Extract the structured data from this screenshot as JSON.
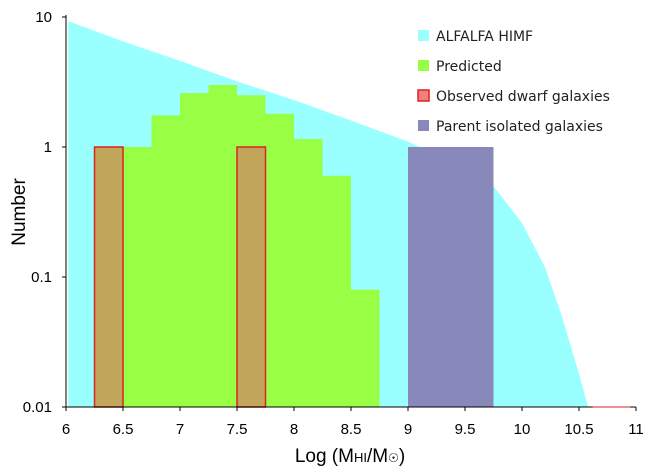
{
  "chart_data": {
    "type": "bar",
    "xlabel": "Log (M",
    "xlabel_sub": "HI",
    "xlabel_mid": "/M",
    "xlabel_sym": "☉",
    "xlabel_end": ")",
    "ylabel": "Number",
    "xlim": [
      6,
      11
    ],
    "ylim": [
      0.01,
      10
    ],
    "yscale": "log",
    "x_ticks": [
      "6",
      "6.5",
      "7",
      "7.5",
      "8",
      "8.5",
      "9",
      "9.5",
      "10",
      "10.5",
      "11"
    ],
    "y_ticks": [
      "10",
      "1",
      "0.1",
      "0.01"
    ],
    "grid": false,
    "legend_position": "top-right",
    "series": [
      {
        "name": "ALFALFA HIMF",
        "kind": "area",
        "color": "#99FFFF",
        "points": [
          [
            6.02,
            9.3
          ],
          [
            6.5,
            6.5
          ],
          [
            7.0,
            4.6
          ],
          [
            7.5,
            3.2
          ],
          [
            8.0,
            2.3
          ],
          [
            8.5,
            1.6
          ],
          [
            9.0,
            1.1
          ],
          [
            9.5,
            0.7
          ],
          [
            9.75,
            0.5
          ],
          [
            10.0,
            0.26
          ],
          [
            10.2,
            0.12
          ],
          [
            10.35,
            0.05
          ],
          [
            10.5,
            0.018
          ],
          [
            10.58,
            0.01
          ],
          [
            10.62,
            0.01
          ]
        ]
      },
      {
        "name": "Predicted",
        "kind": "histogram",
        "color": "#99FF44",
        "bin_width": 0.25,
        "bins": [
          {
            "start": 6.25,
            "value": 1.0
          },
          {
            "start": 6.5,
            "value": 1.0
          },
          {
            "start": 6.75,
            "value": 1.75
          },
          {
            "start": 7.0,
            "value": 2.6
          },
          {
            "start": 7.25,
            "value": 3.0
          },
          {
            "start": 7.5,
            "value": 2.5
          },
          {
            "start": 7.75,
            "value": 1.8
          },
          {
            "start": 8.0,
            "value": 1.15
          },
          {
            "start": 8.25,
            "value": 0.6
          },
          {
            "start": 8.5,
            "value": 0.08
          }
        ]
      },
      {
        "name": "Observed dwarf galaxies",
        "kind": "histogram",
        "color": "#C1A55A",
        "edge_color": "#DD2222",
        "legend_fill": "#F08080",
        "bin_width": 0.25,
        "bins": [
          {
            "start": 6.25,
            "value": 1.0
          },
          {
            "start": 7.5,
            "value": 1.0
          }
        ]
      },
      {
        "name": "Parent isolated galaxies",
        "kind": "histogram",
        "color": "#8888BB",
        "bins": [
          {
            "start": 9.0,
            "end": 9.75,
            "value": 1.0
          }
        ]
      }
    ]
  }
}
